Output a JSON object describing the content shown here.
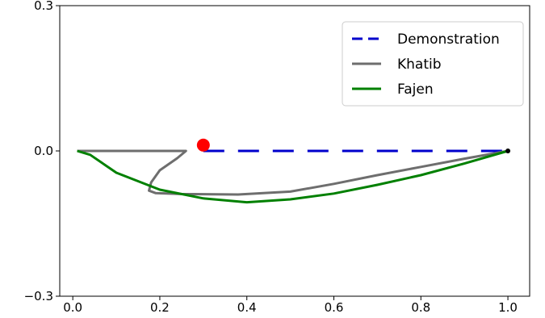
{
  "chart_data": {
    "type": "line",
    "title": "",
    "xlabel": "",
    "ylabel": "",
    "xlim": [
      -0.03,
      1.05
    ],
    "ylim": [
      -0.3,
      0.3
    ],
    "xticks": [
      0.0,
      0.2,
      0.4,
      0.6,
      0.8,
      1.0
    ],
    "xtick_labels": [
      "0.0",
      "0.2",
      "0.4",
      "0.6",
      "0.8",
      "1.0"
    ],
    "yticks": [
      -0.3,
      0.0,
      0.3
    ],
    "ytick_labels": [
      "−0.3",
      "0.0",
      "0.3"
    ],
    "grid": false,
    "legend_position": "top-right",
    "series": [
      {
        "name": "Demonstration",
        "color": "#0000cc",
        "style": "dashed",
        "x": [
          0.3,
          0.4,
          0.5,
          0.6,
          0.7,
          0.8,
          0.9,
          1.0
        ],
        "y": [
          0.0,
          0.0,
          0.0,
          0.0,
          0.0,
          0.0,
          0.0,
          0.0
        ]
      },
      {
        "name": "Khatib",
        "color": "#6e6e6e",
        "style": "solid",
        "x": [
          0.01,
          0.26,
          0.24,
          0.2,
          0.18,
          0.175,
          0.19,
          0.25,
          0.38,
          0.5,
          0.6,
          0.7,
          0.8,
          0.9,
          1.0
        ],
        "y": [
          0.0,
          0.0,
          -0.015,
          -0.04,
          -0.065,
          -0.082,
          -0.087,
          -0.089,
          -0.09,
          -0.084,
          -0.068,
          -0.05,
          -0.033,
          -0.016,
          0.0
        ]
      },
      {
        "name": "Fajen",
        "color": "#008000",
        "style": "solid",
        "x": [
          0.01,
          0.04,
          0.1,
          0.2,
          0.3,
          0.4,
          0.5,
          0.6,
          0.7,
          0.8,
          0.9,
          1.0
        ],
        "y": [
          0.0,
          -0.008,
          -0.045,
          -0.08,
          -0.098,
          -0.106,
          -0.1,
          -0.088,
          -0.07,
          -0.05,
          -0.026,
          0.0
        ]
      }
    ],
    "markers": [
      {
        "x": 0.3,
        "y": 0.012,
        "color": "#ff0000"
      },
      {
        "x": 1.0,
        "y": 0.0,
        "color": "#000000"
      }
    ]
  }
}
